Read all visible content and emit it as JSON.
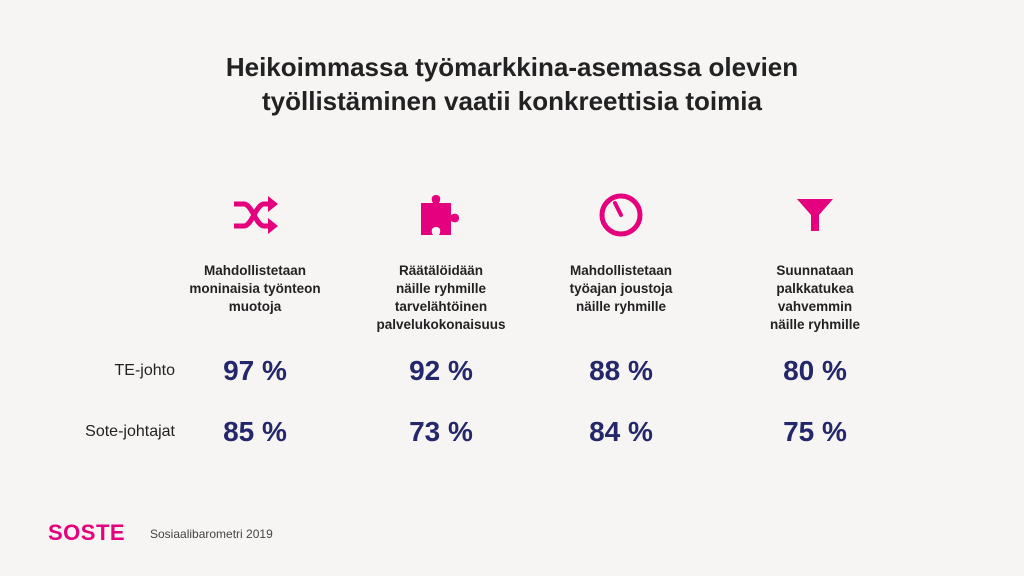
{
  "title_lines": [
    "Heikoimmassa työmarkkina-asemassa olevien",
    "työllistäminen vaatii konkreettisia toimia"
  ],
  "accent_color": "#e5007d",
  "value_color": "#24286b",
  "row_labels": [
    "TE-johto",
    "Sote-johtajat"
  ],
  "columns": [
    {
      "icon": "shuffle-icon",
      "label_lines": [
        "Mahdollistetaan",
        "moninaisia työnteon",
        "muotoja"
      ],
      "values": [
        "97 %",
        "85 %"
      ]
    },
    {
      "icon": "puzzle-icon",
      "label_lines": [
        "Räätälöidään",
        "näille ryhmille",
        "tarvelähtöinen",
        "palvelukokonaisuus"
      ],
      "values": [
        "92 %",
        "73 %"
      ]
    },
    {
      "icon": "clock-icon",
      "label_lines": [
        "Mahdollistetaan",
        "työajan joustoja",
        "näille ryhmille"
      ],
      "values": [
        "88 %",
        "84 %"
      ]
    },
    {
      "icon": "funnel-icon",
      "label_lines": [
        "Suunnataan",
        "palkkatukea",
        "vahvemmin",
        "näille ryhmille"
      ],
      "values": [
        "80 %",
        "75 %"
      ]
    }
  ],
  "footer": {
    "logo": "SOSTE",
    "source": "Sosiaalibarometri 2019"
  }
}
